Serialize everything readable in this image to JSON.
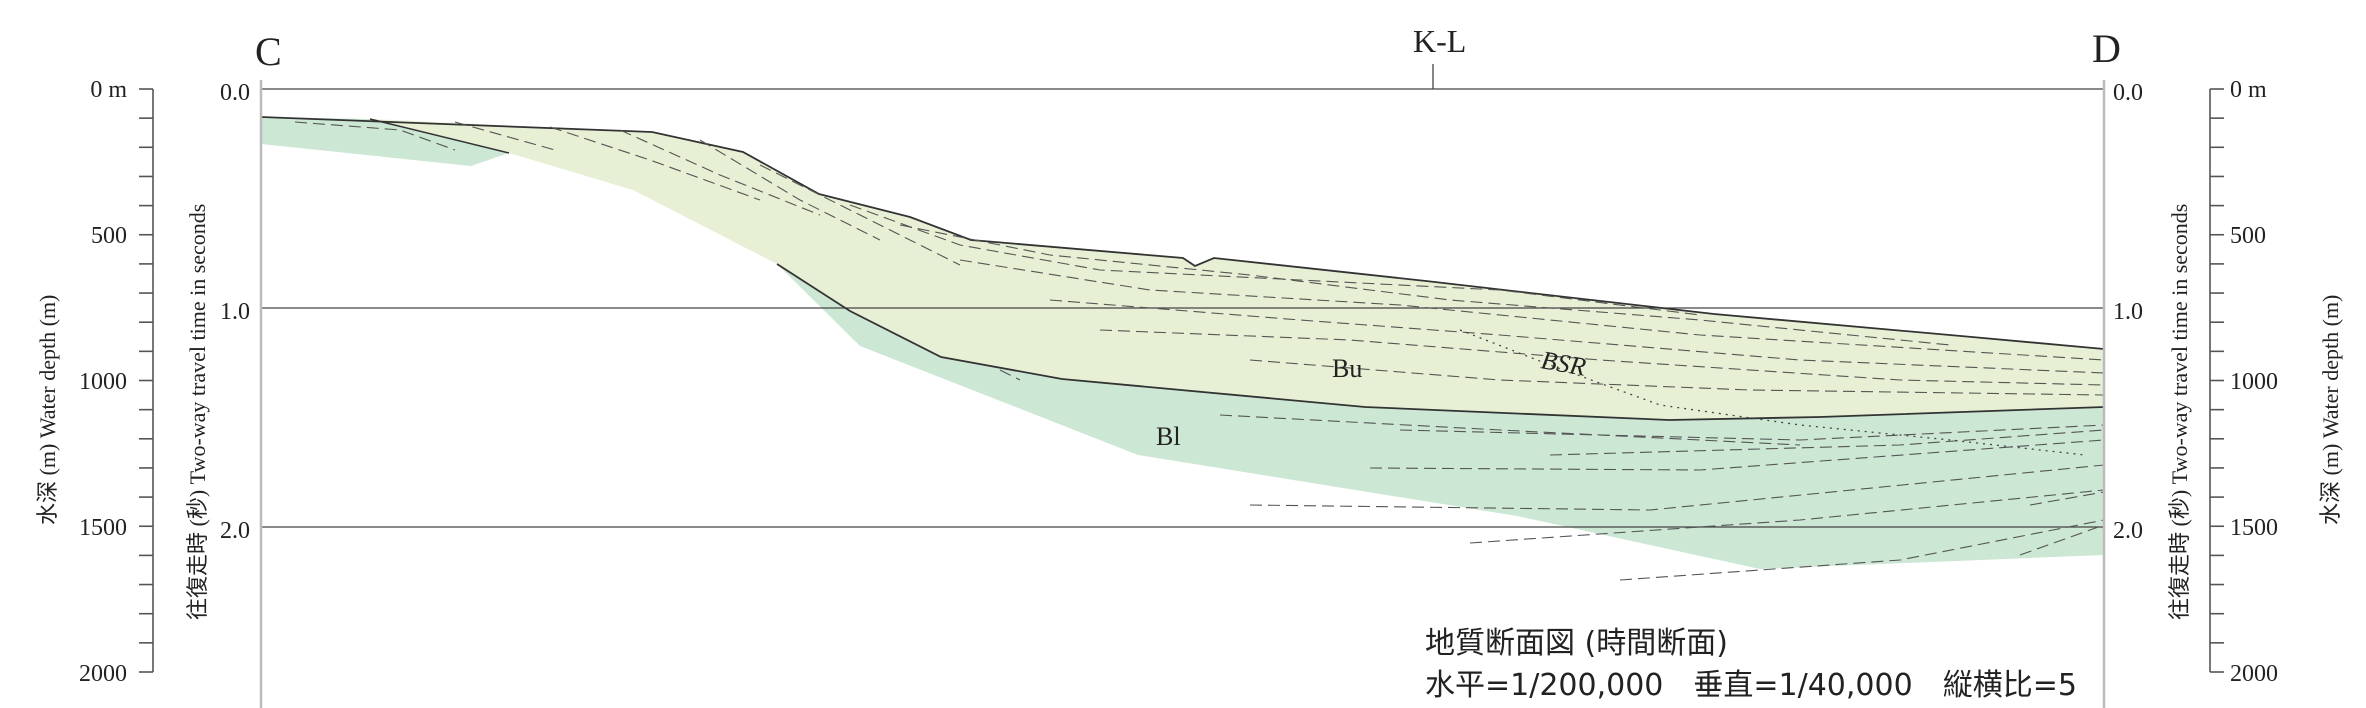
{
  "section": {
    "left_end_label": "C",
    "right_end_label": "D",
    "crossing_label": "K-L"
  },
  "axes": {
    "time_label": "往復走時 (秒) Two-way travel time in seconds",
    "depth_label": "水深 (m) Water depth (m)",
    "time_ticks": [
      "0.0",
      "1.0",
      "2.0"
    ],
    "depth_ticks": [
      "0 m",
      "500",
      "1000",
      "1500",
      "2000"
    ]
  },
  "units": {
    "upper": "Bu",
    "lower": "Bl",
    "bsr": "BSR"
  },
  "caption": {
    "title": "地質断面図 (時間断面)",
    "scale": "水平=1/200,000　垂直=1/40,000　縦横比=5"
  },
  "colors": {
    "upper_unit_fill": "#e7f0d5",
    "lower_unit_fill": "#cde7d5",
    "line": "#333333"
  }
}
